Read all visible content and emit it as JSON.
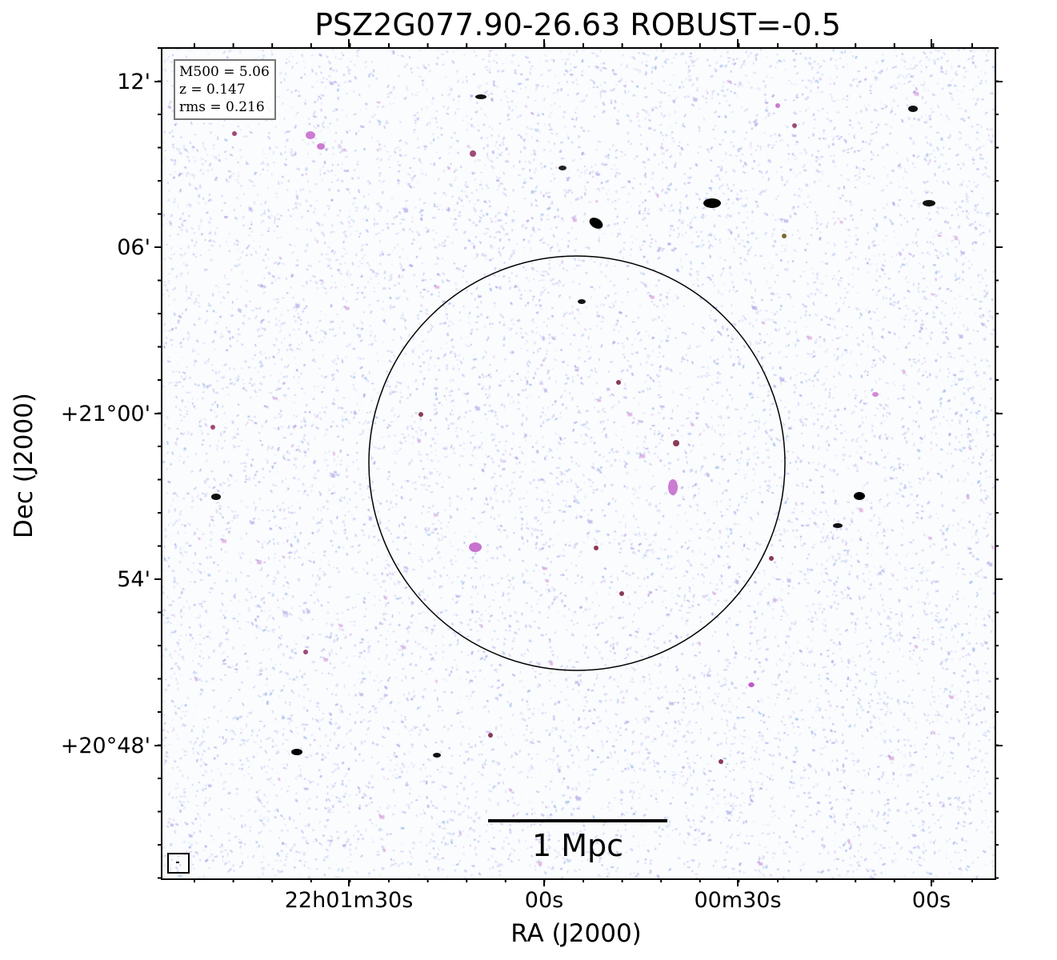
{
  "figure": {
    "title": "PSZ2G077.90-26.63 ROBUST=-0.5",
    "xaxis_title": "RA (J2000)",
    "yaxis_title": "Dec (J2000)",
    "x_ticks": [
      "22h01m30s",
      "00s",
      "00m30s",
      "00s"
    ],
    "y_ticks": [
      "12'",
      "06'",
      "+21°00'",
      "54'",
      "+20°48'"
    ],
    "info": {
      "mass": "M500 = 5.06",
      "redshift": "z = 0.147",
      "rms": "rms = 0.216"
    },
    "scalebar_label": "1 Mpc"
  },
  "colors": {
    "background": "#fbfcfe",
    "noise_blue": "#a9c1ea",
    "noise_lavender": "#b6a8e6",
    "source_magenta": "#c05ac8",
    "source_core": "#111111"
  },
  "icons": {
    "beam": "beam-ellipse-box"
  }
}
